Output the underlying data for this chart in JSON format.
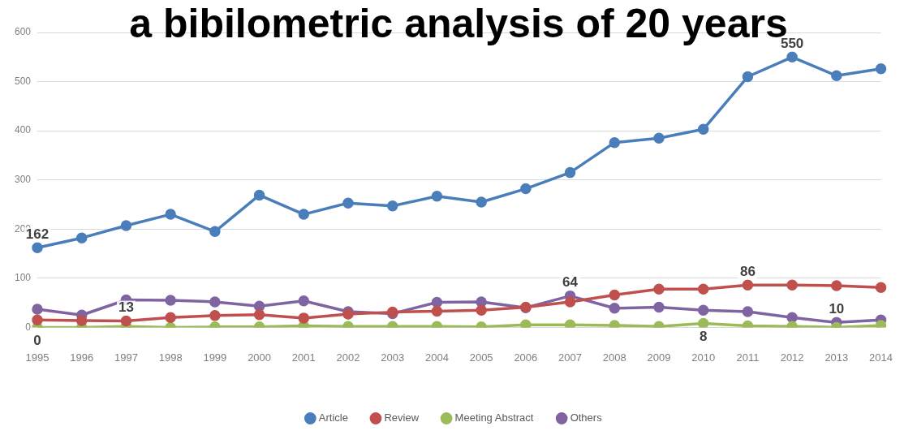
{
  "chart_data": {
    "type": "line",
    "title": "a bibilometric analysis of 20 years",
    "categories": [
      "1995",
      "1996",
      "1997",
      "1998",
      "1999",
      "2000",
      "2001",
      "2002",
      "2003",
      "2004",
      "2005",
      "2006",
      "2007",
      "2008",
      "2009",
      "2010",
      "2011",
      "2012",
      "2013",
      "2014"
    ],
    "series": [
      {
        "name": "Article",
        "color": "#4a7ebb",
        "values": [
          162,
          182,
          207,
          230,
          195,
          269,
          230,
          253,
          247,
          267,
          255,
          282,
          315,
          376,
          385,
          403,
          510,
          550,
          512,
          526
        ],
        "value_labels": [
          "162",
          null,
          null,
          null,
          null,
          null,
          null,
          null,
          null,
          null,
          null,
          null,
          null,
          null,
          null,
          null,
          null,
          "550",
          null,
          null
        ]
      },
      {
        "name": "Review",
        "color": "#c0504d",
        "values": [
          15,
          14,
          13,
          20,
          24,
          26,
          19,
          27,
          31,
          33,
          35,
          41,
          52,
          66,
          78,
          78,
          86,
          86,
          85,
          81
        ],
        "value_labels": [
          null,
          null,
          "13",
          null,
          null,
          null,
          null,
          null,
          null,
          null,
          null,
          null,
          null,
          null,
          null,
          null,
          "86",
          null,
          null,
          null
        ]
      },
      {
        "name": "Meeting Abstract",
        "color": "#9bbb59",
        "values": [
          0,
          0,
          2,
          0,
          1,
          1,
          3,
          2,
          2,
          2,
          1,
          5,
          5,
          4,
          2,
          8,
          3,
          2,
          0,
          4
        ],
        "value_labels": [
          "0",
          null,
          null,
          null,
          null,
          null,
          null,
          null,
          null,
          null,
          null,
          null,
          null,
          null,
          null,
          "8",
          null,
          null,
          null,
          null
        ]
      },
      {
        "name": "Others",
        "color": "#8064a2",
        "values": [
          37,
          25,
          56,
          55,
          52,
          43,
          54,
          32,
          28,
          51,
          52,
          40,
          64,
          39,
          41,
          35,
          32,
          20,
          10,
          15
        ],
        "value_labels": [
          null,
          null,
          null,
          null,
          null,
          null,
          null,
          null,
          null,
          null,
          null,
          null,
          "64",
          null,
          null,
          null,
          null,
          null,
          "10",
          null
        ]
      }
    ],
    "ylim": [
      0,
      600
    ],
    "yticks": [
      0,
      100,
      200,
      300,
      400,
      500,
      600
    ],
    "grid": "y",
    "legend": "bottom",
    "marker": "circle",
    "line_style": "solid"
  }
}
